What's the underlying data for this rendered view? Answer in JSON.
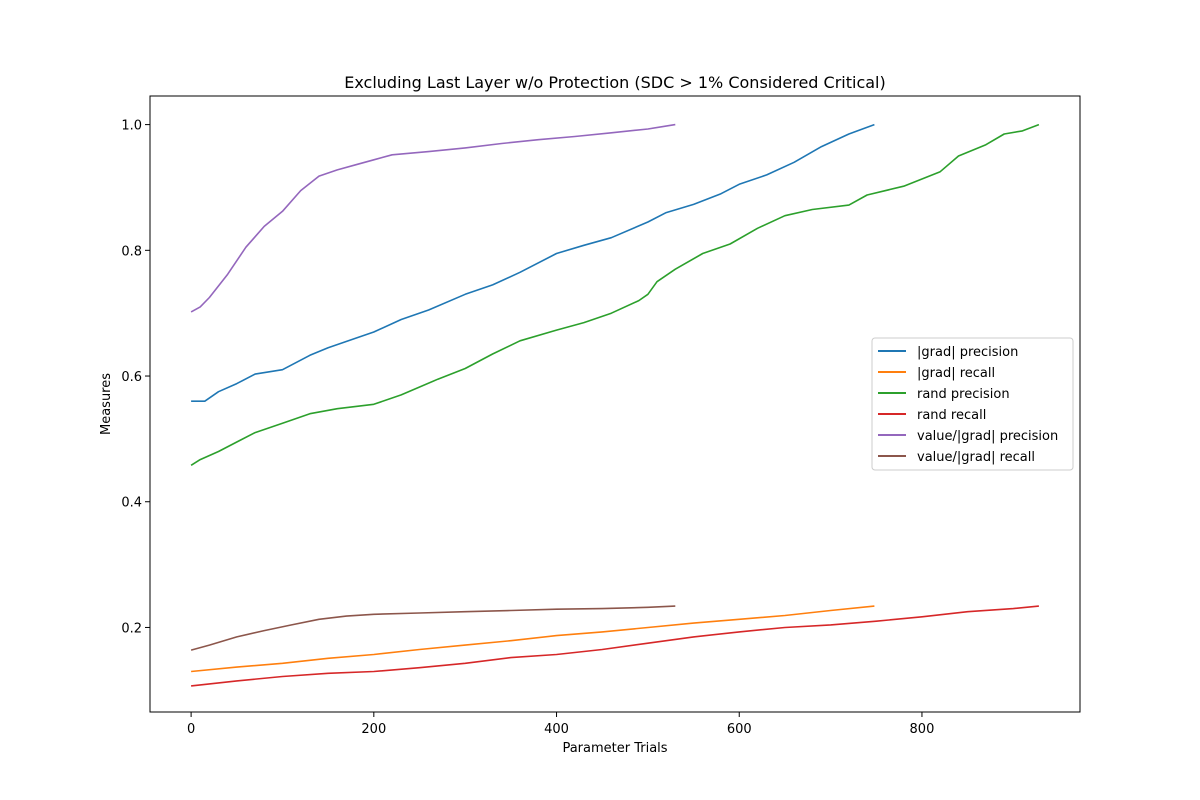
{
  "chart_data": {
    "type": "line",
    "title": "Excluding Last Layer w/o Protection (SDC > 1% Considered Critical)",
    "xlabel": "Parameter Trials",
    "ylabel": "Measures",
    "xlim": [
      -45,
      973
    ],
    "ylim": [
      0.0655,
      1.0455
    ],
    "xticks": [
      0,
      200,
      400,
      600,
      800
    ],
    "yticks": [
      0.2,
      0.4,
      0.6,
      0.8,
      1.0
    ],
    "grid": false,
    "legend_position": "center-right",
    "series": [
      {
        "name": "|grad| precision",
        "color": "#1f77b4",
        "points": [
          [
            0,
            0.56
          ],
          [
            15,
            0.56
          ],
          [
            30,
            0.575
          ],
          [
            50,
            0.588
          ],
          [
            70,
            0.603
          ],
          [
            100,
            0.61
          ],
          [
            130,
            0.633
          ],
          [
            150,
            0.645
          ],
          [
            180,
            0.66
          ],
          [
            200,
            0.67
          ],
          [
            230,
            0.69
          ],
          [
            260,
            0.705
          ],
          [
            300,
            0.73
          ],
          [
            330,
            0.745
          ],
          [
            360,
            0.765
          ],
          [
            400,
            0.795
          ],
          [
            430,
            0.808
          ],
          [
            460,
            0.82
          ],
          [
            500,
            0.845
          ],
          [
            520,
            0.86
          ],
          [
            550,
            0.873
          ],
          [
            580,
            0.89
          ],
          [
            600,
            0.905
          ],
          [
            630,
            0.92
          ],
          [
            660,
            0.94
          ],
          [
            690,
            0.965
          ],
          [
            720,
            0.985
          ],
          [
            748,
            1.0
          ]
        ]
      },
      {
        "name": "|grad| recall",
        "color": "#ff7f0e",
        "points": [
          [
            0,
            0.13
          ],
          [
            50,
            0.137
          ],
          [
            100,
            0.143
          ],
          [
            150,
            0.151
          ],
          [
            200,
            0.157
          ],
          [
            250,
            0.165
          ],
          [
            300,
            0.172
          ],
          [
            350,
            0.179
          ],
          [
            400,
            0.187
          ],
          [
            450,
            0.193
          ],
          [
            500,
            0.2
          ],
          [
            550,
            0.207
          ],
          [
            600,
            0.213
          ],
          [
            650,
            0.219
          ],
          [
            700,
            0.227
          ],
          [
            748,
            0.234
          ]
        ]
      },
      {
        "name": "rand precision",
        "color": "#2ca02c",
        "points": [
          [
            0,
            0.458
          ],
          [
            10,
            0.467
          ],
          [
            30,
            0.48
          ],
          [
            50,
            0.495
          ],
          [
            70,
            0.51
          ],
          [
            100,
            0.525
          ],
          [
            130,
            0.54
          ],
          [
            160,
            0.548
          ],
          [
            200,
            0.555
          ],
          [
            230,
            0.57
          ],
          [
            270,
            0.595
          ],
          [
            300,
            0.612
          ],
          [
            330,
            0.635
          ],
          [
            360,
            0.656
          ],
          [
            400,
            0.673
          ],
          [
            430,
            0.685
          ],
          [
            460,
            0.7
          ],
          [
            490,
            0.72
          ],
          [
            500,
            0.73
          ],
          [
            510,
            0.75
          ],
          [
            530,
            0.77
          ],
          [
            560,
            0.795
          ],
          [
            590,
            0.81
          ],
          [
            620,
            0.835
          ],
          [
            650,
            0.855
          ],
          [
            680,
            0.865
          ],
          [
            720,
            0.872
          ],
          [
            740,
            0.888
          ],
          [
            780,
            0.902
          ],
          [
            820,
            0.925
          ],
          [
            840,
            0.95
          ],
          [
            870,
            0.968
          ],
          [
            890,
            0.985
          ],
          [
            910,
            0.99
          ],
          [
            928,
            1.0
          ]
        ]
      },
      {
        "name": "rand recall",
        "color": "#d62728",
        "points": [
          [
            0,
            0.107
          ],
          [
            50,
            0.115
          ],
          [
            100,
            0.122
          ],
          [
            150,
            0.127
          ],
          [
            200,
            0.13
          ],
          [
            250,
            0.136
          ],
          [
            300,
            0.143
          ],
          [
            350,
            0.152
          ],
          [
            400,
            0.157
          ],
          [
            450,
            0.165
          ],
          [
            500,
            0.175
          ],
          [
            550,
            0.185
          ],
          [
            600,
            0.193
          ],
          [
            650,
            0.2
          ],
          [
            700,
            0.204
          ],
          [
            750,
            0.21
          ],
          [
            800,
            0.217
          ],
          [
            850,
            0.225
          ],
          [
            900,
            0.23
          ],
          [
            928,
            0.234
          ]
        ]
      },
      {
        "name": "value/|grad| precision",
        "color": "#9467bd",
        "points": [
          [
            0,
            0.702
          ],
          [
            10,
            0.71
          ],
          [
            20,
            0.725
          ],
          [
            40,
            0.762
          ],
          [
            60,
            0.805
          ],
          [
            80,
            0.838
          ],
          [
            100,
            0.862
          ],
          [
            120,
            0.895
          ],
          [
            140,
            0.918
          ],
          [
            160,
            0.928
          ],
          [
            180,
            0.936
          ],
          [
            200,
            0.944
          ],
          [
            220,
            0.952
          ],
          [
            260,
            0.957
          ],
          [
            300,
            0.963
          ],
          [
            340,
            0.97
          ],
          [
            380,
            0.976
          ],
          [
            420,
            0.981
          ],
          [
            460,
            0.987
          ],
          [
            500,
            0.993
          ],
          [
            530,
            1.0
          ]
        ]
      },
      {
        "name": "value/|grad| recall",
        "color": "#8c564b",
        "points": [
          [
            0,
            0.164
          ],
          [
            20,
            0.172
          ],
          [
            50,
            0.185
          ],
          [
            80,
            0.195
          ],
          [
            110,
            0.204
          ],
          [
            140,
            0.213
          ],
          [
            170,
            0.218
          ],
          [
            200,
            0.221
          ],
          [
            250,
            0.223
          ],
          [
            300,
            0.225
          ],
          [
            350,
            0.227
          ],
          [
            400,
            0.229
          ],
          [
            450,
            0.23
          ],
          [
            500,
            0.232
          ],
          [
            530,
            0.234
          ]
        ]
      }
    ]
  }
}
